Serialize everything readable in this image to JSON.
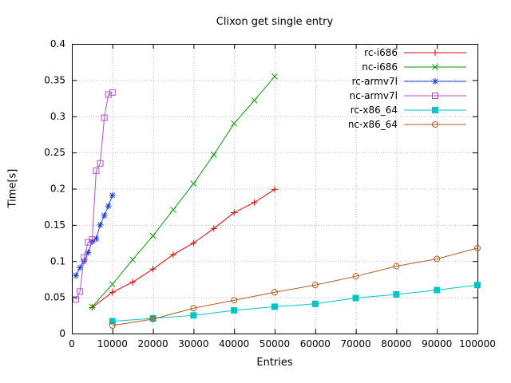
{
  "window": {
    "background": "#ffffff"
  },
  "chart_data": {
    "type": "line",
    "title": "Clixon get single entry",
    "xlabel": "Entries",
    "ylabel": "Time[s]",
    "xlim": [
      0,
      100000
    ],
    "ylim": [
      0,
      0.4
    ],
    "xticks": [
      0,
      10000,
      20000,
      30000,
      40000,
      50000,
      60000,
      70000,
      80000,
      90000,
      100000
    ],
    "xtick_labels": [
      "0",
      "10000",
      "20000",
      "30000",
      "40000",
      "50000",
      "60000",
      "70000",
      "80000",
      "90000",
      "100000"
    ],
    "yticks": [
      0,
      0.05,
      0.1,
      0.15,
      0.2,
      0.25,
      0.3,
      0.35,
      0.4
    ],
    "ytick_labels": [
      "0",
      "0.05",
      "0.1",
      "0.15",
      "0.2",
      "0.25",
      "0.3",
      "0.35",
      "0.4"
    ],
    "grid": true,
    "grid_color": "#b8b8b8",
    "axis_color": "#000000",
    "legend_position": "top-right",
    "series": [
      {
        "name": "rc-i686",
        "color": "#e00000",
        "marker": "plus",
        "x": [
          5000,
          10000,
          15000,
          20000,
          25000,
          30000,
          35000,
          40000,
          45000,
          50000
        ],
        "y": [
          0.036,
          0.057,
          0.071,
          0.089,
          0.109,
          0.125,
          0.145,
          0.167,
          0.181,
          0.199
        ]
      },
      {
        "name": "nc-i686",
        "color": "#009e00",
        "marker": "cross",
        "x": [
          5000,
          10000,
          15000,
          20000,
          25000,
          30000,
          35000,
          40000,
          45000,
          50000
        ],
        "y": [
          0.037,
          0.068,
          0.102,
          0.135,
          0.171,
          0.207,
          0.247,
          0.29,
          0.322,
          0.355
        ]
      },
      {
        "name": "rc-armv7l",
        "color": "#2040d0",
        "marker": "asterisk",
        "x": [
          1000,
          2000,
          3000,
          4000,
          5000,
          6000,
          7000,
          8000,
          9000,
          10000
        ],
        "y": [
          0.08,
          0.091,
          0.1,
          0.112,
          0.127,
          0.131,
          0.15,
          0.163,
          0.176,
          0.191
        ]
      },
      {
        "name": "nc-armv7l",
        "color": "#b050d0",
        "marker": "square-open",
        "x": [
          1000,
          2000,
          3000,
          4000,
          5000,
          6000,
          7000,
          8000,
          9000,
          10000
        ],
        "y": [
          0.047,
          0.058,
          0.105,
          0.126,
          0.13,
          0.225,
          0.235,
          0.298,
          0.33,
          0.333
        ]
      },
      {
        "name": "rc-x86_64",
        "color": "#00c5c5",
        "marker": "square-filled",
        "x": [
          10000,
          20000,
          30000,
          40000,
          50000,
          60000,
          70000,
          80000,
          90000,
          100000
        ],
        "y": [
          0.017,
          0.021,
          0.025,
          0.032,
          0.037,
          0.041,
          0.049,
          0.054,
          0.06,
          0.067
        ]
      },
      {
        "name": "nc-x86_64",
        "color": "#b05a1e",
        "marker": "circle-open",
        "x": [
          10000,
          20000,
          30000,
          40000,
          50000,
          60000,
          70000,
          80000,
          90000,
          100000
        ],
        "y": [
          0.011,
          0.02,
          0.035,
          0.046,
          0.057,
          0.067,
          0.079,
          0.093,
          0.103,
          0.118
        ]
      }
    ]
  }
}
